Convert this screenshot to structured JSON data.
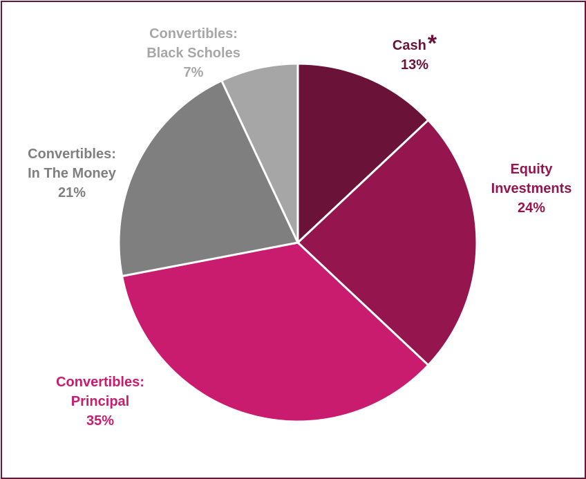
{
  "chart_data": {
    "type": "pie",
    "start_angle_deg": 0,
    "direction": "clockwise",
    "slices": [
      {
        "line1": "Cash",
        "line2": "",
        "value_label": "13%",
        "value": 13,
        "marker": "*",
        "color": "#6b1238",
        "label_color": "#6b1238"
      },
      {
        "line1": "Equity",
        "line2": "Investments",
        "value_label": "24%",
        "value": 24,
        "marker": "",
        "color": "#95164f",
        "label_color": "#95164f"
      },
      {
        "line1": "Convertibles:",
        "line2": "Principal",
        "value_label": "35%",
        "value": 35,
        "marker": "",
        "color": "#c91c6e",
        "label_color": "#c91c6e"
      },
      {
        "line1": "Convertibles:",
        "line2": "In The Money",
        "value_label": "21%",
        "value": 21,
        "marker": "",
        "color": "#7f7f7f",
        "label_color": "#7f7f7f"
      },
      {
        "line1": "Convertibles:",
        "line2": "Black Scholes",
        "value_label": "7%",
        "value": 7,
        "marker": "",
        "color": "#a6a6a6",
        "label_color": "#a6a6a6"
      }
    ],
    "legend": "none"
  }
}
